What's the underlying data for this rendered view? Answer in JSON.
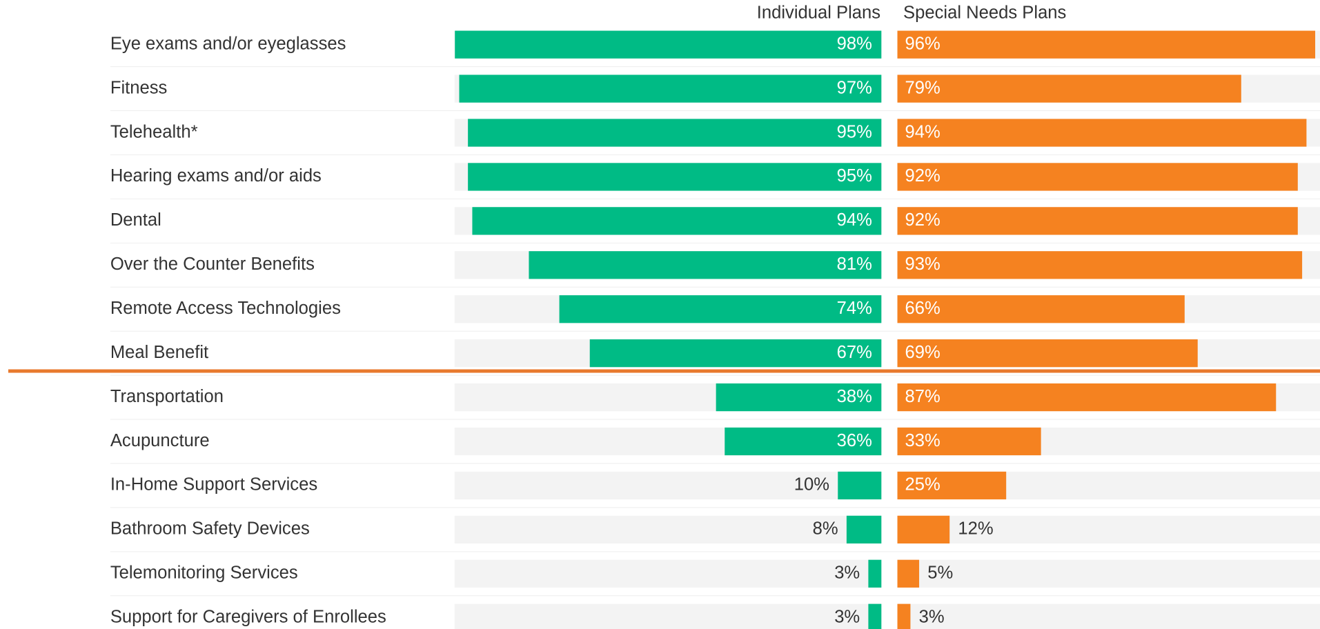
{
  "chart_data": {
    "type": "bar",
    "categories": [
      "Eye exams and/or eyeglasses",
      "Fitness",
      "Telehealth*",
      "Hearing exams and/or aids",
      "Dental",
      "Over the Counter Benefits",
      "Remote Access Technologies",
      "Meal Benefit",
      "Transportation",
      "Acupuncture",
      "In-Home Support Services",
      "Bathroom Safety Devices",
      "Telemonitoring Services",
      "Support for Caregivers of Enrollees"
    ],
    "series": [
      {
        "name": "Individual Plans",
        "color": "#00bb85",
        "values": [
          98,
          97,
          95,
          95,
          94,
          81,
          74,
          67,
          38,
          36,
          10,
          8,
          3,
          3
        ],
        "value_labels": [
          "98%",
          "97%",
          "95%",
          "95%",
          "94%",
          "81%",
          "74%",
          "67%",
          "38%",
          "36%",
          "10%",
          "8%",
          "3%",
          "3%"
        ]
      },
      {
        "name": "Special Needs Plans",
        "color": "#f58220",
        "values": [
          96,
          79,
          94,
          92,
          92,
          93,
          66,
          69,
          87,
          33,
          25,
          12,
          5,
          3
        ],
        "value_labels": [
          "96%",
          "79%",
          "94%",
          "92%",
          "92%",
          "93%",
          "66%",
          "69%",
          "87%",
          "33%",
          "25%",
          "12%",
          "5%",
          "3%"
        ]
      }
    ],
    "xlim": [
      0,
      100
    ]
  }
}
